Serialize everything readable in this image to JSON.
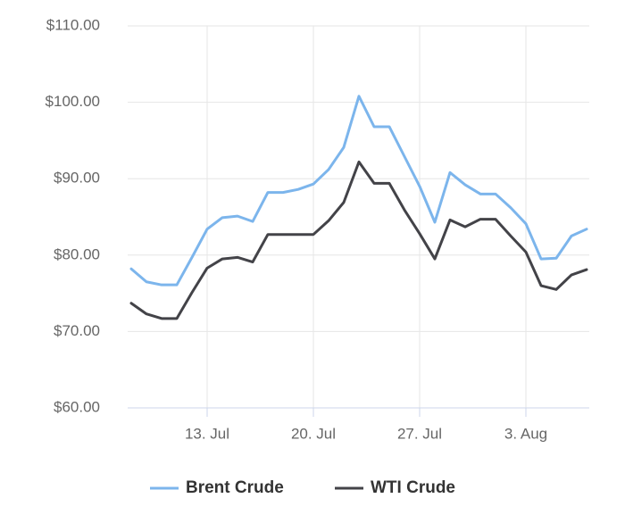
{
  "chart_data": {
    "type": "line",
    "categories": [
      null,
      null,
      null,
      null,
      null,
      "13. Jul",
      null,
      null,
      null,
      null,
      null,
      null,
      "20. Jul",
      null,
      null,
      null,
      null,
      null,
      null,
      "27. Jul",
      null,
      null,
      null,
      null,
      null,
      null,
      "3. Aug",
      null,
      null,
      null,
      null
    ],
    "series": [
      {
        "name": "Brent Crude",
        "color": "#7cb5ec",
        "values": [
          78.2,
          76.5,
          76.1,
          76.1,
          79.7,
          83.4,
          84.9,
          85.1,
          84.4,
          88.2,
          88.2,
          88.6,
          89.3,
          91.2,
          94.1,
          100.8,
          96.8,
          96.8,
          92.9,
          89.0,
          84.3,
          90.8,
          89.2,
          88.0,
          88.0,
          86.2,
          84.1,
          79.5,
          79.6,
          82.5,
          83.4
        ]
      },
      {
        "name": "WTI Crude",
        "color": "#434348",
        "values": [
          73.7,
          72.3,
          71.7,
          71.7,
          75.1,
          78.3,
          79.5,
          79.7,
          79.1,
          82.7,
          82.7,
          82.7,
          82.7,
          84.5,
          86.9,
          92.2,
          89.4,
          89.4,
          85.9,
          82.8,
          79.5,
          84.6,
          83.7,
          84.7,
          84.7,
          82.5,
          80.4,
          76.0,
          75.5,
          77.4,
          78.1
        ]
      }
    ],
    "ylim": [
      60,
      110
    ],
    "yticks": [
      {
        "value": 60,
        "label": "$60.00"
      },
      {
        "value": 70,
        "label": "$70.00"
      },
      {
        "value": 80,
        "label": "$80.00"
      },
      {
        "value": 90,
        "label": "$90.00"
      },
      {
        "value": 100,
        "label": "$100.00"
      },
      {
        "value": 110,
        "label": "$110.00"
      }
    ],
    "grid": true,
    "legend": "bottom"
  }
}
